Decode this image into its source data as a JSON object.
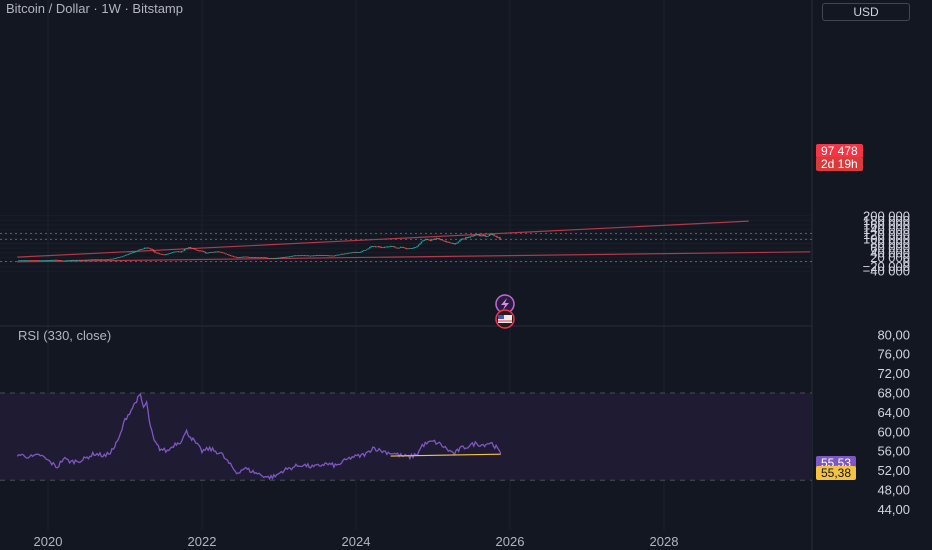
{
  "header": {
    "symbol_title": "Bitcoin / Dollar · 1W · Bitstamp",
    "currency_button": "USD"
  },
  "rsi_panel": {
    "title": "RSI (330, close)"
  },
  "price_tag": {
    "price": "97 478",
    "countdown": "2d 19h"
  },
  "rsi_tags": {
    "rsi_value": "55,53",
    "rsi_ma_value": "55,38"
  },
  "colors": {
    "background": "#131722",
    "candle_up": "#26a69a",
    "candle_down": "#ef5350",
    "trendline": "#b2384a",
    "rsi_line": "#7e57c2",
    "rsi_band": "#1f1b33",
    "rsi_ma": "#f5c342",
    "price_tag": "#f23645"
  },
  "chart_data": [
    {
      "type": "candlestick",
      "title": "Bitcoin / Dollar · 1W · Bitstamp",
      "x_ticks": [
        "2020",
        "2022",
        "2024",
        "2026",
        "2028"
      ],
      "y_ticks": [
        "200 000",
        "180 000",
        "160 000",
        "140 000",
        "120 000",
        "100 000",
        "80 000",
        "60 000",
        "40 000",
        "20 000",
        "0",
        "−20 000",
        "−40 000"
      ],
      "ylim": [
        -45000,
        210000
      ],
      "xlim": [
        2019.6,
        2029.9
      ],
      "last_price": 97478,
      "horizontal_dotted_levels": [
        124000,
        98000,
        2000
      ],
      "trendlines": [
        {
          "name": "upper",
          "points": [
            [
              2019.6,
              21000
            ],
            [
              2029.1,
              177000
            ]
          ]
        },
        {
          "name": "lower",
          "points": [
            [
              2019.6,
              1000
            ],
            [
              2029.9,
              44000
            ]
          ]
        }
      ],
      "close_path": [
        [
          2019.6,
          7000
        ],
        [
          2019.75,
          8500
        ],
        [
          2019.9,
          7200
        ],
        [
          2020.1,
          9500
        ],
        [
          2020.2,
          5500
        ],
        [
          2020.3,
          8800
        ],
        [
          2020.45,
          9300
        ],
        [
          2020.6,
          11300
        ],
        [
          2020.75,
          11000
        ],
        [
          2020.85,
          15000
        ],
        [
          2020.95,
          23000
        ],
        [
          2021.05,
          36000
        ],
        [
          2021.15,
          48000
        ],
        [
          2021.22,
          57000
        ],
        [
          2021.28,
          62000
        ],
        [
          2021.34,
          56000
        ],
        [
          2021.38,
          42000
        ],
        [
          2021.45,
          35000
        ],
        [
          2021.52,
          32000
        ],
        [
          2021.6,
          40000
        ],
        [
          2021.66,
          46000
        ],
        [
          2021.72,
          43000
        ],
        [
          2021.78,
          55000
        ],
        [
          2021.83,
          64000
        ],
        [
          2021.88,
          59000
        ],
        [
          2021.93,
          50000
        ],
        [
          2022.0,
          47000
        ],
        [
          2022.05,
          38000
        ],
        [
          2022.1,
          43000
        ],
        [
          2022.2,
          45000
        ],
        [
          2022.28,
          39000
        ],
        [
          2022.35,
          30000
        ],
        [
          2022.45,
          20000
        ],
        [
          2022.55,
          23000
        ],
        [
          2022.62,
          21000
        ],
        [
          2022.7,
          20000
        ],
        [
          2022.8,
          20500
        ],
        [
          2022.86,
          16500
        ],
        [
          2022.95,
          16800
        ],
        [
          2023.05,
          21000
        ],
        [
          2023.12,
          23000
        ],
        [
          2023.2,
          28000
        ],
        [
          2023.3,
          29000
        ],
        [
          2023.4,
          27000
        ],
        [
          2023.5,
          30000
        ],
        [
          2023.6,
          29000
        ],
        [
          2023.7,
          27000
        ],
        [
          2023.8,
          34000
        ],
        [
          2023.88,
          37000
        ],
        [
          2023.95,
          42000
        ],
        [
          2024.05,
          43000
        ],
        [
          2024.12,
          52000
        ],
        [
          2024.2,
          68000
        ],
        [
          2024.28,
          66000
        ],
        [
          2024.35,
          63000
        ],
        [
          2024.45,
          70000
        ],
        [
          2024.52,
          61000
        ],
        [
          2024.6,
          65000
        ],
        [
          2024.66,
          58000
        ],
        [
          2024.72,
          60000
        ],
        [
          2024.8,
          68000
        ],
        [
          2024.85,
          90000
        ],
        [
          2024.9,
          97000
        ],
        [
          2024.96,
          94000
        ],
        [
          2025.05,
          102000
        ],
        [
          2025.1,
          98000
        ],
        [
          2025.17,
          86000
        ],
        [
          2025.25,
          82000
        ],
        [
          2025.3,
          77000
        ],
        [
          2025.35,
          95000
        ],
        [
          2025.42,
          105000
        ],
        [
          2025.48,
          108000
        ],
        [
          2025.55,
          118000
        ],
        [
          2025.62,
          116000
        ],
        [
          2025.7,
          112000
        ],
        [
          2025.76,
          122000
        ],
        [
          2025.79,
          112000
        ],
        [
          2025.83,
          108000
        ],
        [
          2025.88,
          98000
        ]
      ]
    },
    {
      "type": "line",
      "title": "RSI (330, close)",
      "y_ticks": [
        "80,00",
        "76,00",
        "72,00",
        "68,00",
        "64,00",
        "60,00",
        "56,00",
        "52,00",
        "48,00",
        "44,00"
      ],
      "ylim": [
        42,
        82
      ],
      "band": [
        50,
        68
      ],
      "series": [
        {
          "values": [
            [
              2019.6,
              55.3
            ],
            [
              2019.8,
              54.8
            ],
            [
              2019.9,
              55.2
            ],
            [
              2020.05,
              53.5
            ],
            [
              2020.12,
              52.7
            ],
            [
              2020.2,
              54.5
            ],
            [
              2020.3,
              53.8
            ],
            [
              2020.45,
              54.2
            ],
            [
              2020.6,
              55.5
            ],
            [
              2020.75,
              55.0
            ],
            [
              2020.85,
              56.5
            ],
            [
              2020.92,
              58.5
            ],
            [
              2021.0,
              62.5
            ],
            [
              2021.08,
              64.5
            ],
            [
              2021.15,
              66.5
            ],
            [
              2021.2,
              67.5
            ],
            [
              2021.24,
              65.0
            ],
            [
              2021.28,
              66.0
            ],
            [
              2021.33,
              61.0
            ],
            [
              2021.38,
              58.0
            ],
            [
              2021.45,
              56.5
            ],
            [
              2021.55,
              56.0
            ],
            [
              2021.65,
              57.5
            ],
            [
              2021.72,
              58.0
            ],
            [
              2021.8,
              60.0
            ],
            [
              2021.85,
              59.0
            ],
            [
              2021.9,
              58.0
            ],
            [
              2022.0,
              56.0
            ],
            [
              2022.1,
              56.5
            ],
            [
              2022.25,
              55.5
            ],
            [
              2022.35,
              53.5
            ],
            [
              2022.45,
              51.5
            ],
            [
              2022.55,
              52.5
            ],
            [
              2022.7,
              51.5
            ],
            [
              2022.86,
              50.6
            ],
            [
              2022.95,
              50.8
            ],
            [
              2023.05,
              52.0
            ],
            [
              2023.2,
              52.8
            ],
            [
              2023.3,
              53.2
            ],
            [
              2023.45,
              52.7
            ],
            [
              2023.6,
              53.4
            ],
            [
              2023.75,
              53.0
            ],
            [
              2023.85,
              54.0
            ],
            [
              2023.95,
              54.8
            ],
            [
              2024.05,
              55.0
            ],
            [
              2024.15,
              55.6
            ],
            [
              2024.22,
              56.8
            ],
            [
              2024.3,
              56.2
            ],
            [
              2024.4,
              55.8
            ],
            [
              2024.5,
              55.5
            ],
            [
              2024.6,
              55.0
            ],
            [
              2024.7,
              54.8
            ],
            [
              2024.8,
              55.5
            ],
            [
              2024.86,
              57.2
            ],
            [
              2024.92,
              57.6
            ],
            [
              2025.0,
              58.0
            ],
            [
              2025.1,
              57.4
            ],
            [
              2025.2,
              56.2
            ],
            [
              2025.28,
              55.5
            ],
            [
              2025.35,
              56.5
            ],
            [
              2025.45,
              57.0
            ],
            [
              2025.55,
              57.6
            ],
            [
              2025.65,
              57.3
            ],
            [
              2025.75,
              57.8
            ],
            [
              2025.82,
              56.8
            ],
            [
              2025.88,
              55.53
            ]
          ]
        },
        {
          "values": [
            [
              2024.45,
              55.0
            ],
            [
              2025.88,
              55.38
            ]
          ]
        }
      ]
    }
  ]
}
